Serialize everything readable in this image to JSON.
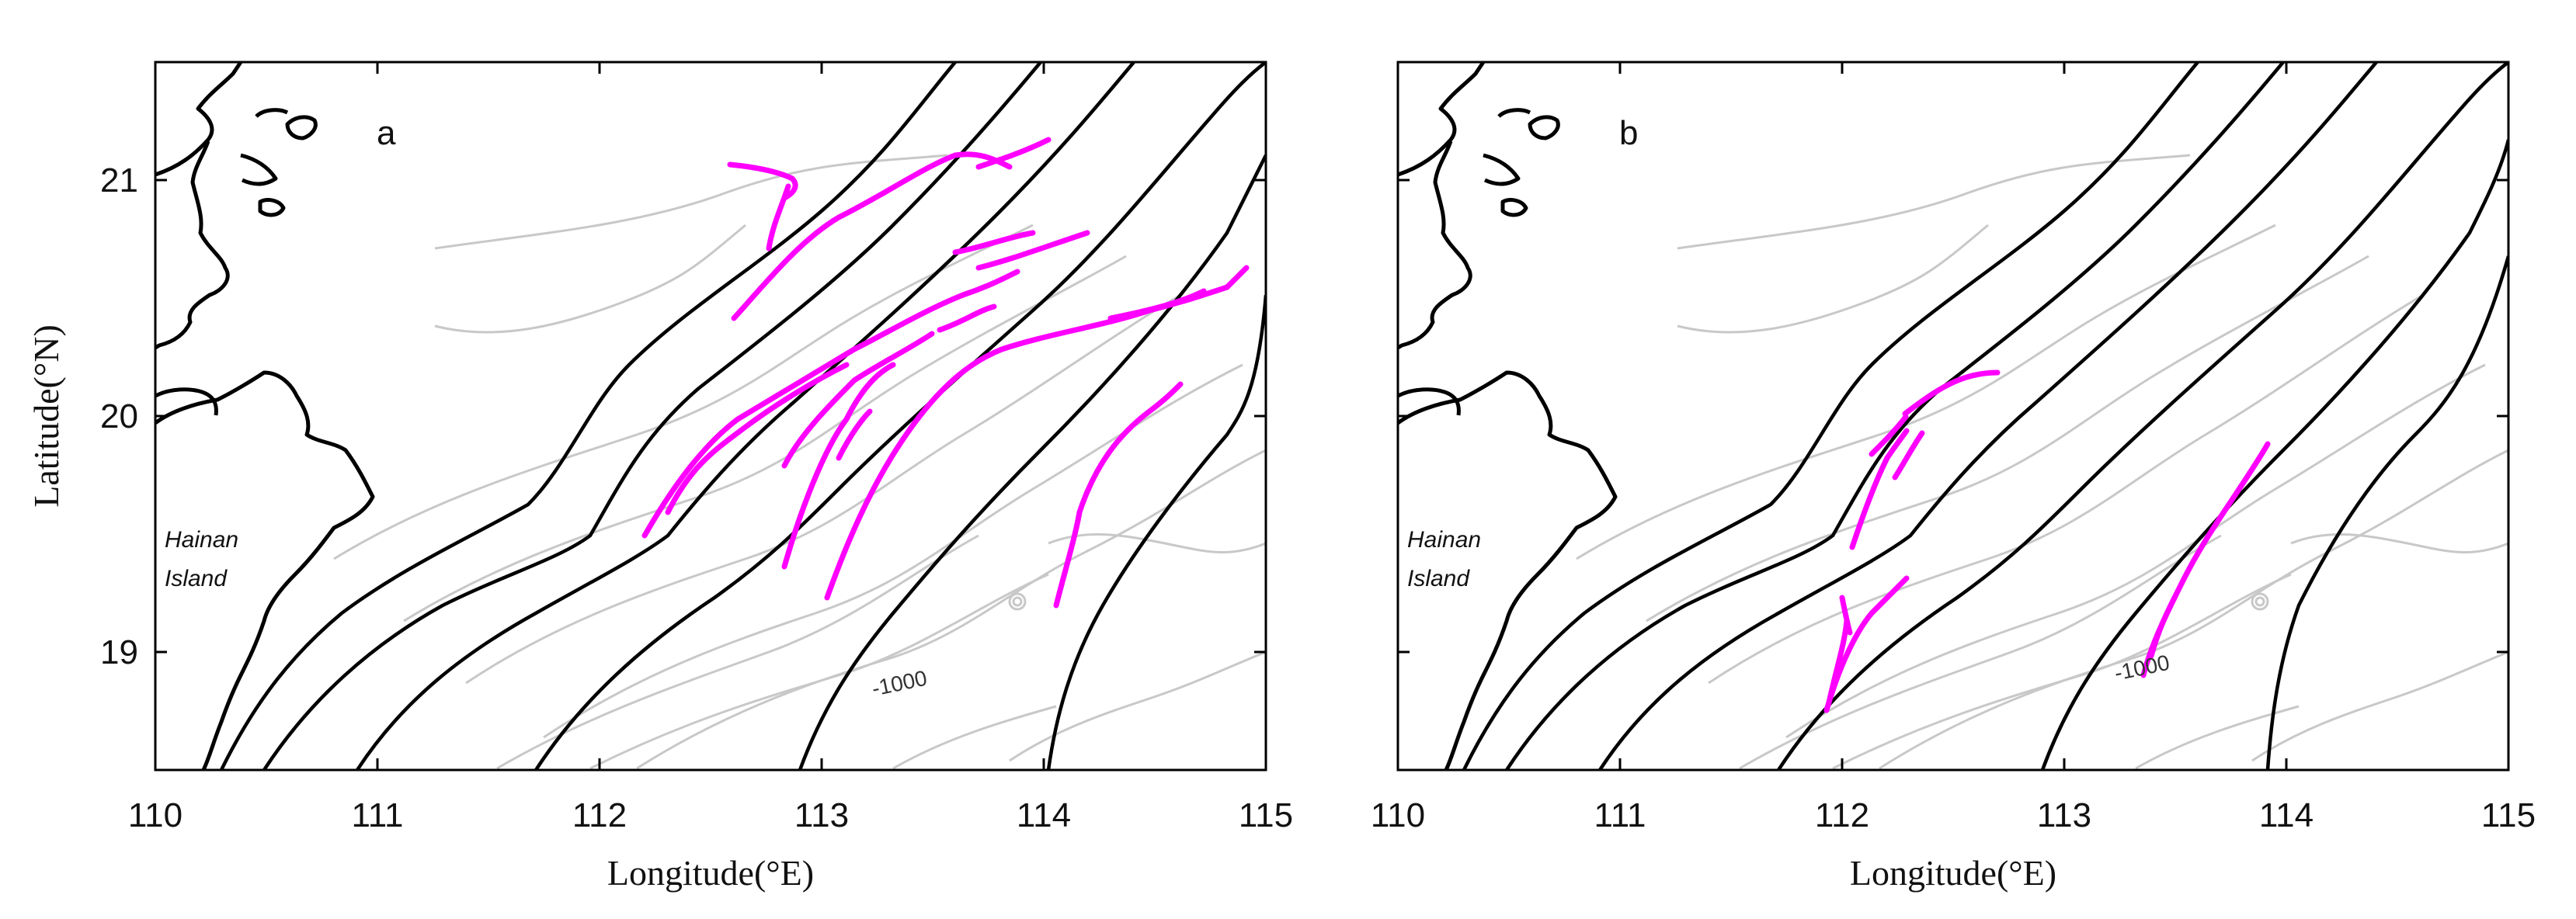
{
  "figure": {
    "panels": [
      {
        "letter": "a",
        "xlabel": "Longitude(°E)",
        "ylabel": "Latitude(°N)",
        "x_ticks": [
          "110",
          "111",
          "112",
          "113",
          "114",
          "115"
        ],
        "y_ticks": [
          "19",
          "20",
          "21"
        ],
        "xlim": [
          110,
          115
        ],
        "ylim": [
          18.5,
          21.5
        ],
        "island_label": [
          "Hainan",
          "Island"
        ],
        "contour_label": "-1000",
        "features": [
          {
            "type": "coastline",
            "color": "#000000"
          },
          {
            "type": "isobaths",
            "color": "#000000"
          },
          {
            "type": "fine-bathymetry",
            "color": "#c8c8c8"
          },
          {
            "type": "wave-crests",
            "color": "#ff00ff"
          }
        ]
      },
      {
        "letter": "b",
        "xlabel": "Longitude(°E)",
        "ylabel": "",
        "x_ticks": [
          "110",
          "111",
          "112",
          "113",
          "114",
          "115"
        ],
        "y_ticks": [],
        "xlim": [
          110,
          115
        ],
        "ylim": [
          18.5,
          21.5
        ],
        "island_label": [
          "Hainan",
          "Island"
        ],
        "contour_label": "-1000",
        "features": [
          {
            "type": "coastline",
            "color": "#000000"
          },
          {
            "type": "isobaths",
            "color": "#000000"
          },
          {
            "type": "fine-bathymetry",
            "color": "#c8c8c8"
          },
          {
            "type": "wave-crests",
            "color": "#ff00ff"
          }
        ]
      }
    ],
    "colors": {
      "coastline": "#000000",
      "isobath": "#000000",
      "bathymetry_fine": "#c8c8c8",
      "wave_crest": "#ff00ff",
      "frame": "#000000"
    }
  }
}
